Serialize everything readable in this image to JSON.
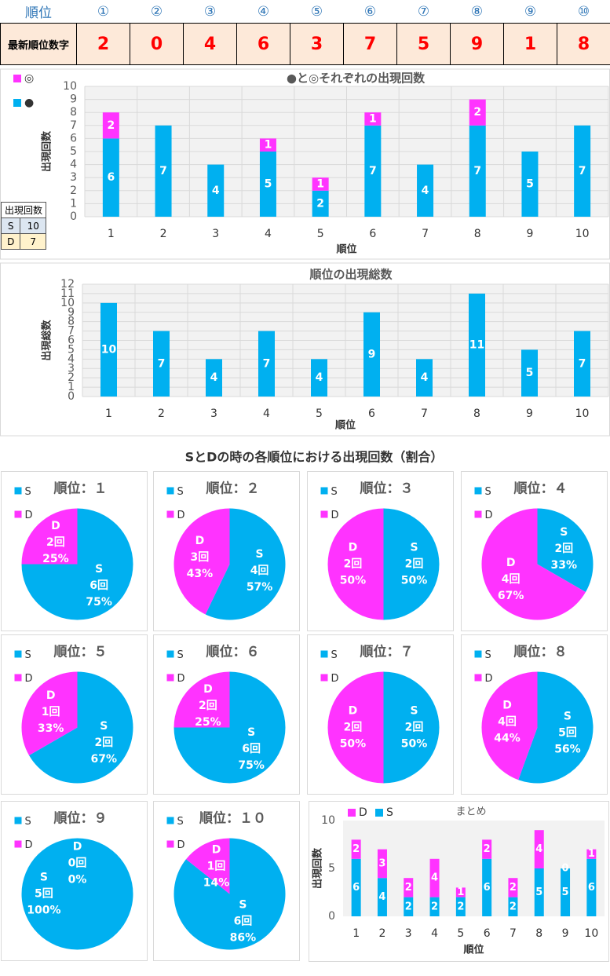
{
  "header": {
    "rows": [
      [
        "順位",
        "①",
        "②",
        "③",
        "④",
        "⑤",
        "⑥",
        "⑦",
        "⑧",
        "⑨",
        "⑩"
      ],
      [
        "最新順位数字",
        2,
        0,
        4,
        6,
        3,
        7,
        5,
        9,
        1,
        8
      ]
    ]
  },
  "count_table": {
    "title": "出現回数",
    "rows": [
      [
        "S",
        10
      ],
      [
        "D",
        7
      ]
    ]
  },
  "section_title": "SとDの時の各順位における出現回数（割合）",
  "chart_data": [
    {
      "type": "stacked_bar",
      "title": "●と◎それぞれの出現回数",
      "ylabel": "出現回数",
      "xlabel": "順位",
      "categories": [
        "1",
        "2",
        "3",
        "4",
        "5",
        "6",
        "7",
        "8",
        "9",
        "10"
      ],
      "series": [
        {
          "name": "●",
          "color": "#00b0f0",
          "values": [
            6,
            7,
            4,
            5,
            2,
            7,
            4,
            7,
            5,
            7
          ]
        },
        {
          "name": "◎",
          "color": "#ff33ff",
          "values": [
            2,
            0,
            0,
            1,
            1,
            1,
            0,
            2,
            0,
            0
          ]
        }
      ],
      "ylim": [
        0,
        10
      ],
      "yticks": [
        0,
        1,
        2,
        3,
        4,
        5,
        6,
        7,
        8,
        9,
        10
      ],
      "grid": true,
      "label_zero": false
    },
    {
      "type": "bar",
      "title": "順位の出現総数",
      "ylabel": "出現総数",
      "xlabel": "順位",
      "categories": [
        "1",
        "2",
        "3",
        "4",
        "5",
        "6",
        "7",
        "8",
        "9",
        "10"
      ],
      "values": [
        10,
        7,
        4,
        7,
        4,
        9,
        4,
        11,
        5,
        7
      ],
      "color": "#00b0f0",
      "ylim": [
        0,
        12
      ],
      "yticks": [
        0,
        1,
        2,
        3,
        4,
        5,
        6,
        7,
        8,
        9,
        10,
        11,
        12
      ],
      "grid": true
    },
    {
      "type": "pie",
      "title": "順位：１",
      "categories": [
        "S",
        "D"
      ],
      "colors": [
        "#00b0f0",
        "#ff33ff"
      ],
      "values": [
        6,
        2
      ],
      "value_labels": [
        "6回",
        "2回"
      ],
      "percent_labels": [
        "75%",
        "25%"
      ]
    },
    {
      "type": "pie",
      "title": "順位：２",
      "categories": [
        "S",
        "D"
      ],
      "colors": [
        "#00b0f0",
        "#ff33ff"
      ],
      "values": [
        4,
        3
      ],
      "value_labels": [
        "4回",
        "3回"
      ],
      "percent_labels": [
        "57%",
        "43%"
      ]
    },
    {
      "type": "pie",
      "title": "順位：３",
      "categories": [
        "S",
        "D"
      ],
      "colors": [
        "#00b0f0",
        "#ff33ff"
      ],
      "values": [
        2,
        2
      ],
      "value_labels": [
        "2回",
        "2回"
      ],
      "percent_labels": [
        "50%",
        "50%"
      ]
    },
    {
      "type": "pie",
      "title": "順位：４",
      "categories": [
        "S",
        "D"
      ],
      "colors": [
        "#00b0f0",
        "#ff33ff"
      ],
      "values": [
        2,
        4
      ],
      "value_labels": [
        "2回",
        "4回"
      ],
      "percent_labels": [
        "33%",
        "67%"
      ]
    },
    {
      "type": "pie",
      "title": "順位：５",
      "categories": [
        "S",
        "D"
      ],
      "colors": [
        "#00b0f0",
        "#ff33ff"
      ],
      "values": [
        2,
        1
      ],
      "value_labels": [
        "2回",
        "1回"
      ],
      "percent_labels": [
        "67%",
        "33%"
      ]
    },
    {
      "type": "pie",
      "title": "順位：６",
      "categories": [
        "S",
        "D"
      ],
      "colors": [
        "#00b0f0",
        "#ff33ff"
      ],
      "values": [
        6,
        2
      ],
      "value_labels": [
        "6回",
        "2回"
      ],
      "percent_labels": [
        "75%",
        "25%"
      ]
    },
    {
      "type": "pie",
      "title": "順位：７",
      "categories": [
        "S",
        "D"
      ],
      "colors": [
        "#00b0f0",
        "#ff33ff"
      ],
      "values": [
        2,
        2
      ],
      "value_labels": [
        "2回",
        "2回"
      ],
      "percent_labels": [
        "50%",
        "50%"
      ]
    },
    {
      "type": "pie",
      "title": "順位：８",
      "categories": [
        "S",
        "D"
      ],
      "colors": [
        "#00b0f0",
        "#ff33ff"
      ],
      "values": [
        5,
        4
      ],
      "value_labels": [
        "5回",
        "4回"
      ],
      "percent_labels": [
        "56%",
        "44%"
      ]
    },
    {
      "type": "pie",
      "title": "順位：９",
      "categories": [
        "S",
        "D"
      ],
      "colors": [
        "#00b0f0",
        "#ff33ff"
      ],
      "values": [
        5,
        0
      ],
      "value_labels": [
        "5回",
        "0回"
      ],
      "percent_labels": [
        "100%",
        "0%"
      ]
    },
    {
      "type": "pie",
      "title": "順位：１０",
      "categories": [
        "S",
        "D"
      ],
      "colors": [
        "#00b0f0",
        "#ff33ff"
      ],
      "values": [
        6,
        1
      ],
      "value_labels": [
        "6回",
        "1回"
      ],
      "percent_labels": [
        "86%",
        "14%"
      ]
    },
    {
      "type": "stacked_bar",
      "title": "まとめ",
      "ylabel": "出現回数",
      "xlabel": "順位",
      "categories": [
        "1",
        "2",
        "3",
        "4",
        "5",
        "6",
        "7",
        "8",
        "9",
        "10"
      ],
      "series": [
        {
          "name": "S",
          "color": "#00b0f0",
          "values": [
            6,
            4,
            2,
            2,
            2,
            6,
            2,
            5,
            5,
            6
          ]
        },
        {
          "name": "D",
          "color": "#ff33ff",
          "values": [
            2,
            3,
            2,
            4,
            1,
            2,
            2,
            4,
            0,
            1
          ]
        }
      ],
      "ylim": [
        0,
        10
      ],
      "yticks": [
        0,
        5,
        10
      ],
      "grid": false,
      "label_zero": true
    }
  ]
}
